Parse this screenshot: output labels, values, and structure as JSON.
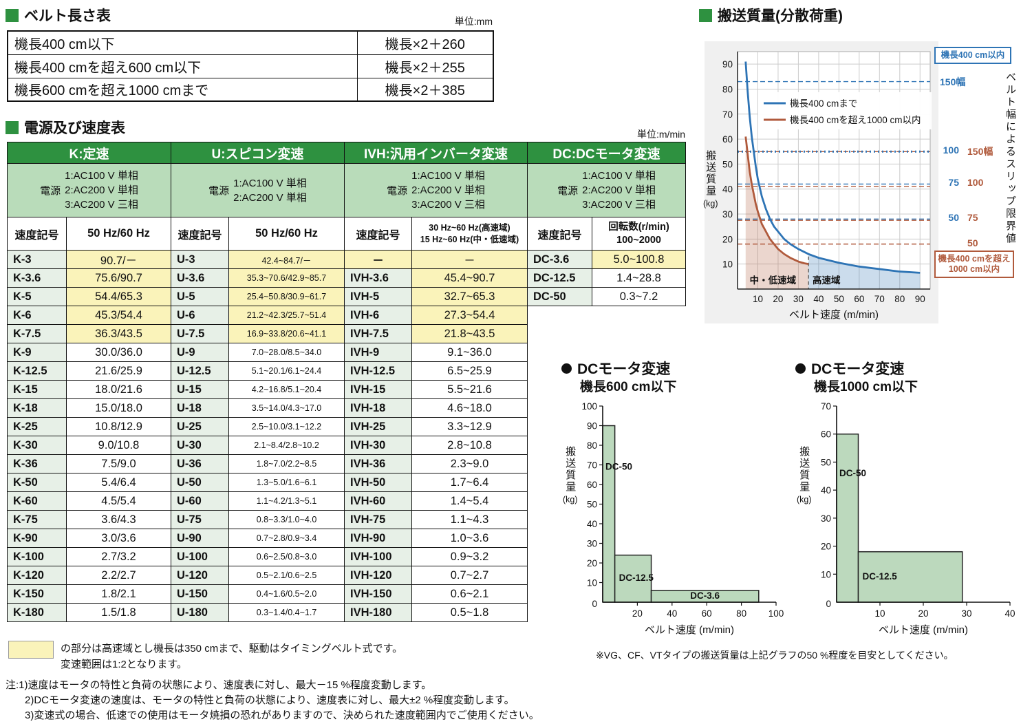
{
  "colors": {
    "green": "#2e9140",
    "green_light": "#b9dcba",
    "green_pale": "#e7f0e7",
    "yellow": "#faf3ba",
    "blue": "#2e74b5",
    "brown": "#b05a3c",
    "bar_fill": "#bcd9bd",
    "panel": "#f0f0f0"
  },
  "belt_length_table": {
    "title": "ベルト長さ表",
    "unit": "単位:mm",
    "rows": [
      {
        "condition": "機長400 cm以下",
        "formula": "機長×2＋260"
      },
      {
        "condition": "機長400 cmを超え600 cm以下",
        "formula": "機長×2＋255"
      },
      {
        "condition": "機長600 cmを超え1000 cmまで",
        "formula": "機長×2＋385"
      }
    ]
  },
  "speed_table": {
    "title": "電源及び速度表",
    "unit": "単位:m/min",
    "power_label": "電源",
    "groups": [
      {
        "name": "K:定速",
        "power_lines": [
          "1:AC100 V 単相",
          "2:AC200 V 単相",
          "3:AC200 V 三相"
        ],
        "symbol_header": "速度記号",
        "value_header_lines": [
          "50 Hz/60 Hz"
        ],
        "small_values": false,
        "header_small": false,
        "rows": [
          [
            "K-3",
            "90.7/－",
            1
          ],
          [
            "K-3.6",
            "75.6/90.7",
            1
          ],
          [
            "K-5",
            "54.4/65.3",
            1
          ],
          [
            "K-6",
            "45.3/54.4",
            1
          ],
          [
            "K-7.5",
            "36.3/43.5",
            1
          ],
          [
            "K-9",
            "30.0/36.0",
            0
          ],
          [
            "K-12.5",
            "21.6/25.9",
            0
          ],
          [
            "K-15",
            "18.0/21.6",
            0
          ],
          [
            "K-18",
            "15.0/18.0",
            0
          ],
          [
            "K-25",
            "10.8/12.9",
            0
          ],
          [
            "K-30",
            "9.0/10.8",
            0
          ],
          [
            "K-36",
            "7.5/9.0",
            0
          ],
          [
            "K-50",
            "5.4/6.4",
            0
          ],
          [
            "K-60",
            "4.5/5.4",
            0
          ],
          [
            "K-75",
            "3.6/4.3",
            0
          ],
          [
            "K-90",
            "3.0/3.6",
            0
          ],
          [
            "K-100",
            "2.7/3.2",
            0
          ],
          [
            "K-120",
            "2.2/2.7",
            0
          ],
          [
            "K-150",
            "1.8/2.1",
            0
          ],
          [
            "K-180",
            "1.5/1.8",
            0
          ]
        ]
      },
      {
        "name": "U:スピコン変速",
        "power_lines": [
          "1:AC100 V 単相",
          "2:AC200 V 単相"
        ],
        "symbol_header": "速度記号",
        "value_header_lines": [
          "50 Hz/60 Hz"
        ],
        "small_values": true,
        "header_small": false,
        "rows": [
          [
            "U-3",
            "42.4~84.7/－",
            1
          ],
          [
            "U-3.6",
            "35.3~70.6/42.9~85.7",
            1
          ],
          [
            "U-5",
            "25.4~50.8/30.9~61.7",
            1
          ],
          [
            "U-6",
            "21.2~42.3/25.7~51.4",
            1
          ],
          [
            "U-7.5",
            "16.9~33.8/20.6~41.1",
            1
          ],
          [
            "U-9",
            "7.0~28.0/8.5~34.0",
            0
          ],
          [
            "U-12.5",
            "5.1~20.1/6.1~24.4",
            0
          ],
          [
            "U-15",
            "4.2~16.8/5.1~20.4",
            0
          ],
          [
            "U-18",
            "3.5~14.0/4.3~17.0",
            0
          ],
          [
            "U-25",
            "2.5~10.0/3.1~12.2",
            0
          ],
          [
            "U-30",
            "2.1~8.4/2.8~10.2",
            0
          ],
          [
            "U-36",
            "1.8~7.0/2.2~8.5",
            0
          ],
          [
            "U-50",
            "1.3~5.0/1.6~6.1",
            0
          ],
          [
            "U-60",
            "1.1~4.2/1.3~5.1",
            0
          ],
          [
            "U-75",
            "0.8~3.3/1.0~4.0",
            0
          ],
          [
            "U-90",
            "0.7~2.8/0.9~3.4",
            0
          ],
          [
            "U-100",
            "0.6~2.5/0.8~3.0",
            0
          ],
          [
            "U-120",
            "0.5~2.1/0.6~2.5",
            0
          ],
          [
            "U-150",
            "0.4~1.6/0.5~2.0",
            0
          ],
          [
            "U-180",
            "0.3~1.4/0.4~1.7",
            0
          ]
        ]
      },
      {
        "name": "IVH:汎用インバータ変速",
        "power_lines": [
          "1:AC100 V 単相",
          "2:AC200 V 単相",
          "3:AC200 V 三相"
        ],
        "symbol_header": "速度記号",
        "value_header_lines": [
          "30 Hz~60 Hz(高速域)",
          "15 Hz~60 Hz(中・低速域)"
        ],
        "small_values": false,
        "header_small": true,
        "rows": [
          [
            "－",
            "－",
            1
          ],
          [
            "IVH-3.6",
            "45.4~90.7",
            1
          ],
          [
            "IVH-5",
            "32.7~65.3",
            1
          ],
          [
            "IVH-6",
            "27.3~54.4",
            1
          ],
          [
            "IVH-7.5",
            "21.8~43.5",
            1
          ],
          [
            "IVH-9",
            "9.1~36.0",
            0
          ],
          [
            "IVH-12.5",
            "6.5~25.9",
            0
          ],
          [
            "IVH-15",
            "5.5~21.6",
            0
          ],
          [
            "IVH-18",
            "4.6~18.0",
            0
          ],
          [
            "IVH-25",
            "3.3~12.9",
            0
          ],
          [
            "IVH-30",
            "2.8~10.8",
            0
          ],
          [
            "IVH-36",
            "2.3~9.0",
            0
          ],
          [
            "IVH-50",
            "1.7~6.4",
            0
          ],
          [
            "IVH-60",
            "1.4~5.4",
            0
          ],
          [
            "IVH-75",
            "1.1~4.3",
            0
          ],
          [
            "IVH-90",
            "1.0~3.6",
            0
          ],
          [
            "IVH-100",
            "0.9~3.2",
            0
          ],
          [
            "IVH-120",
            "0.7~2.7",
            0
          ],
          [
            "IVH-150",
            "0.6~2.1",
            0
          ],
          [
            "IVH-180",
            "0.5~1.8",
            0
          ]
        ]
      },
      {
        "name": "DC:DCモータ変速",
        "power_lines": [
          "1:AC100 V 単相",
          "2:AC200 V 単相",
          "3:AC200 V 三相"
        ],
        "symbol_header": "速度記号",
        "value_header_lines": [
          "回転数(r/min)",
          "100~2000"
        ],
        "small_values": false,
        "header_small": false,
        "rows": [
          [
            "DC-3.6",
            "5.0~100.8",
            1
          ],
          [
            "DC-12.5",
            "1.4~28.8",
            0
          ],
          [
            "DC-50",
            "0.3~7.2",
            0
          ]
        ]
      }
    ]
  },
  "legend_note": {
    "lines": [
      "の部分は高速域とし機長は350 cmまで、駆動はタイミングベルト式です。",
      "変速範囲は1:2となります。"
    ]
  },
  "notes": {
    "label": "注:",
    "lines": [
      "1)速度はモータの特性と負荷の状態により、速度表に対し、最大－15 %程度変動します。",
      "2)DCモータ変速の速度は、モータの特性と負荷の状態により、速度表に対し、最大±2 %程度変動します。",
      "3)変速式の場合、低速での使用はモータ焼損の恐れがありますので、決められた速度範囲内でご使用ください。"
    ]
  },
  "dc_note": "※VG、CF、VTタイプの搬送質量は上記グラフの50 %程度を目安としてください。",
  "chart_data": [
    {
      "type": "line",
      "title": "搬送質量(分散荷重)",
      "xlabel": "ベルト速度 (m/min)",
      "ylabel": "搬送質量(kg)",
      "ylabel_main": "搬送質量",
      "ylabel_unit": "(kg)",
      "xlim": [
        0,
        95
      ],
      "ylim": [
        0,
        95
      ],
      "xticks": [
        10,
        20,
        30,
        40,
        50,
        60,
        70,
        80,
        90
      ],
      "yticks": [
        10,
        20,
        30,
        40,
        50,
        60,
        70,
        80,
        90
      ],
      "series": [
        {
          "name": "機長400 cmまで",
          "color": "#2e74b5",
          "points": [
            [
              4,
              91
            ],
            [
              5,
              79
            ],
            [
              6,
              69
            ],
            [
              7,
              61
            ],
            [
              8,
              55
            ],
            [
              9,
              49
            ],
            [
              10,
              44
            ],
            [
              12,
              37
            ],
            [
              14,
              32
            ],
            [
              16,
              28
            ],
            [
              18,
              25
            ],
            [
              20,
              23
            ],
            [
              23,
              20
            ],
            [
              26,
              18
            ],
            [
              30,
              16
            ],
            [
              35,
              14
            ],
            [
              40,
              12.5
            ],
            [
              45,
              11.5
            ],
            [
              50,
              10.5
            ],
            [
              60,
              9
            ],
            [
              70,
              8
            ],
            [
              80,
              7
            ],
            [
              90,
              6.5
            ]
          ]
        },
        {
          "name": "機長400 cmを超え1000 cm以内",
          "color": "#b05a3c",
          "points": [
            [
              4,
              61
            ],
            [
              5,
              54
            ],
            [
              6,
              47
            ],
            [
              7,
              42
            ],
            [
              8,
              38
            ],
            [
              9,
              34
            ],
            [
              10,
              31
            ],
            [
              12,
              26
            ],
            [
              14,
              23
            ],
            [
              16,
              20
            ],
            [
              18,
              18
            ],
            [
              20,
              16
            ],
            [
              23,
              14
            ],
            [
              26,
              12.5
            ],
            [
              30,
              11
            ],
            [
              33,
              10.3
            ],
            [
              35,
              10
            ]
          ]
        }
      ],
      "slip_limits": {
        "blue": [
          {
            "label": "150幅",
            "y": 83
          },
          {
            "label": "100",
            "y": 55,
            "thick": true
          },
          {
            "label": "75",
            "y": 42
          },
          {
            "label": "50",
            "y": 28
          }
        ],
        "brown": [
          {
            "label": "150幅",
            "y": 55
          },
          {
            "label": "100",
            "y": 41
          },
          {
            "label": "75",
            "y": 27.5
          },
          {
            "label": "50",
            "y": 18
          }
        ]
      },
      "regions": [
        {
          "label": "中・低速域",
          "x_range": [
            0,
            35
          ]
        },
        {
          "label": "高速域",
          "x_range": [
            35,
            90
          ]
        }
      ],
      "boundary_x": 35,
      "annotations": {
        "top_box": "機長400 cm以内",
        "bottom_box_line1": "機長400 cmを超え",
        "bottom_box_line2": "1000 cm以内",
        "side_label": "ベルト幅によるスリップ限界値"
      }
    },
    {
      "type": "bar",
      "title": "DCモータ変速",
      "subtitle": "機長600 cm以下",
      "xlabel": "ベルト速度 (m/min)",
      "ylabel": "搬送質量(kg)",
      "ylabel_main": "搬送質量",
      "ylabel_unit": "(kg)",
      "xlim": [
        0,
        100
      ],
      "ylim": [
        0,
        100
      ],
      "xticks": [
        20,
        40,
        60,
        80,
        100
      ],
      "yticks": [
        10,
        20,
        30,
        40,
        50,
        60,
        70,
        80,
        90,
        100
      ],
      "bars": [
        {
          "label": "DC-50",
          "x0": 0,
          "x1": 7,
          "height": 90
        },
        {
          "label": "DC-12.5",
          "x0": 7,
          "x1": 28,
          "height": 24
        },
        {
          "label": "DC-3.6",
          "x0": 28,
          "x1": 90,
          "height": 6
        }
      ]
    },
    {
      "type": "bar",
      "title": "DCモータ変速",
      "subtitle": "機長1000 cm以下",
      "xlabel": "ベルト速度 (m/min)",
      "ylabel": "搬送質量(kg)",
      "ylabel_main": "搬送質量",
      "ylabel_unit": "(kg)",
      "xlim": [
        0,
        40
      ],
      "ylim": [
        0,
        70
      ],
      "xticks": [
        10,
        20,
        30,
        40
      ],
      "yticks": [
        10,
        20,
        30,
        40,
        50,
        60,
        70
      ],
      "bars": [
        {
          "label": "DC-50",
          "x0": 0,
          "x1": 5,
          "height": 60
        },
        {
          "label": "DC-12.5",
          "x0": 5,
          "x1": 29,
          "height": 18
        }
      ]
    }
  ]
}
